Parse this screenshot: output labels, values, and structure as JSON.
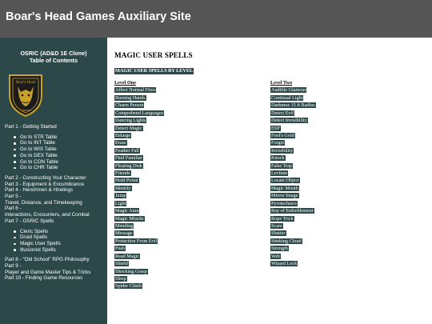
{
  "header": {
    "title": "Boar's Head Games Auxiliary Site"
  },
  "sidebar": {
    "toc_title_line1": "OSRIC (AD&D 1E Clone)",
    "toc_title_line2": "Table of Contents",
    "logo": {
      "text_top": "Boar's Head",
      "text_bottom": "Games",
      "icon": "boar-head-shield-icon",
      "colors": {
        "shield": "#1c1c1c",
        "gold": "#c9a227"
      }
    },
    "part1": "Part 1 - Getting Started",
    "part1_items": [
      "Go to STR Table",
      "Go to INT Table",
      "Go to WIS Table",
      "Go to DEX Table",
      "Go to CON Table",
      "Go to CHR Table"
    ],
    "parts_mid": [
      "Part 2 - Constructing Your Character",
      "Part 3 - Equipment & Encumbrance",
      "Part 4 - Henchmen & Hirelings",
      "Part 5 -",
      "Travel, Distance, and Timekeeping",
      "Part 6 -",
      "Interactions, Encounters, and Combat",
      "Part 7 - OSRIC Spells"
    ],
    "part7_items": [
      "Cleric Spells",
      "Druid Spells",
      "Magic User Spells",
      "Illusionist Spells"
    ],
    "parts_end": [
      "Part 8 - \"Old School\" RPG Philosophy",
      "Part 9 -",
      "Player and Game Master Tips & Tricks",
      "Part 10 - Finding Game Resources"
    ]
  },
  "main": {
    "title": "MAGIC USER SPELLS",
    "section": "MAGIC USER SPELLS BY LEVEL",
    "level_one": {
      "heading": "Level One",
      "spells": [
        "Affect Normal Fires",
        "Burning Hands",
        "Charm Person",
        "Comprehend Languages",
        "Dancing Lights",
        "Detect Magic",
        "Enlarge",
        "Erase",
        "Feather Fall",
        "Find Familiar",
        "Floating Disk",
        "Friends",
        "Hold Portal",
        "Identify",
        "Jump",
        "Light",
        "Magic Aura",
        "Magic Missile",
        "Mending",
        "Message",
        "Protection From Evil",
        "Push",
        "Read Magic",
        "Shield",
        "Shocking Grasp",
        "Sleep",
        "Spider Climb"
      ]
    },
    "level_two": {
      "heading": "Level Two",
      "spells": [
        "Audible Glamour",
        "Continual Light",
        "Darkness 15 ft Radius",
        "Detect Evil",
        "Detect Invisibility",
        "ESP",
        "Fool's Gold",
        "Forget",
        "Invisibility",
        "Knock",
        "False Trap",
        "Levitate",
        "Locate Object",
        "Magic Mouth",
        "Mirror Image",
        "Pyrotechnics",
        "Ray of Enfeeblement",
        "Rope Trick",
        "Scare",
        "Shatter",
        "Stinking Cloud",
        "Strength",
        "Web",
        "Wizard Lock"
      ]
    }
  },
  "colors": {
    "header_bg": "#555555",
    "sidebar_bg": "#2c4848",
    "highlight_bg": "#2c4848",
    "text_light": "#ffffff"
  }
}
